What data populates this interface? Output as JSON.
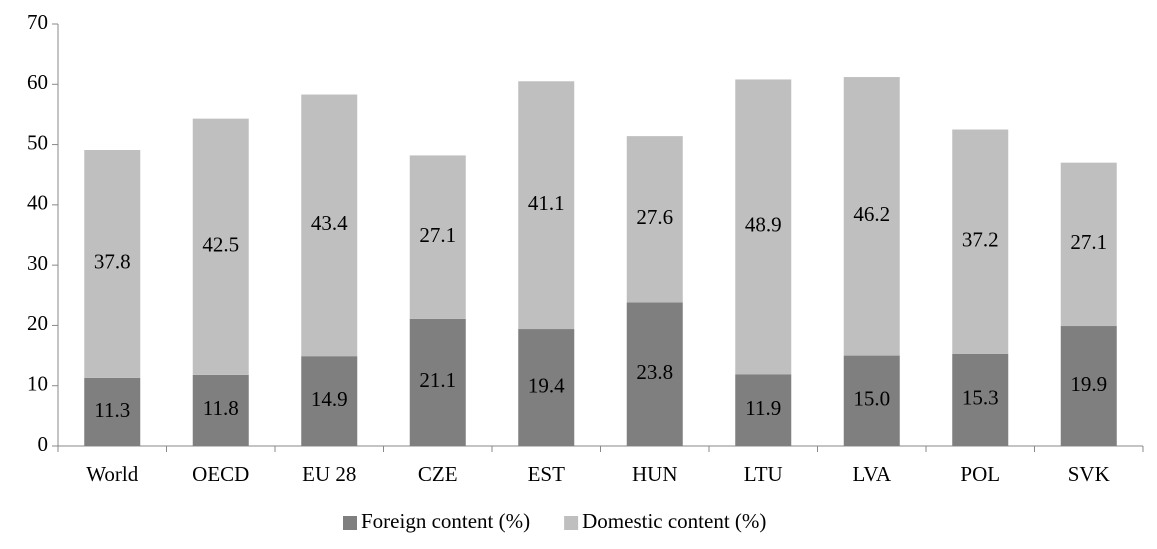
{
  "chart_data": {
    "type": "stacked_bar",
    "categories": [
      "World",
      "OECD",
      "EU 28",
      "CZE",
      "EST",
      "HUN",
      "LTU",
      "LVA",
      "POL",
      "SVK"
    ],
    "series": [
      {
        "name": "Foreign content (%)",
        "color": "#7f7f7f",
        "values": [
          11.3,
          11.8,
          14.9,
          21.1,
          19.4,
          23.8,
          11.9,
          15.0,
          15.3,
          19.9
        ],
        "value_labels": [
          "11.3",
          "11.8",
          "14.9",
          "21.1",
          "19.4",
          "23.8",
          "11.9",
          "15.0",
          "15.3",
          "19.9"
        ]
      },
      {
        "name": "Domestic content (%)",
        "color": "#bfbfbf",
        "values": [
          37.8,
          42.5,
          43.4,
          27.1,
          41.1,
          27.6,
          48.9,
          46.2,
          37.2,
          27.1
        ]
      }
    ],
    "ylim": [
      0,
      70
    ],
    "yticks": [
      0,
      10,
      20,
      30,
      40,
      50,
      60,
      70
    ],
    "legend": "bottom"
  }
}
